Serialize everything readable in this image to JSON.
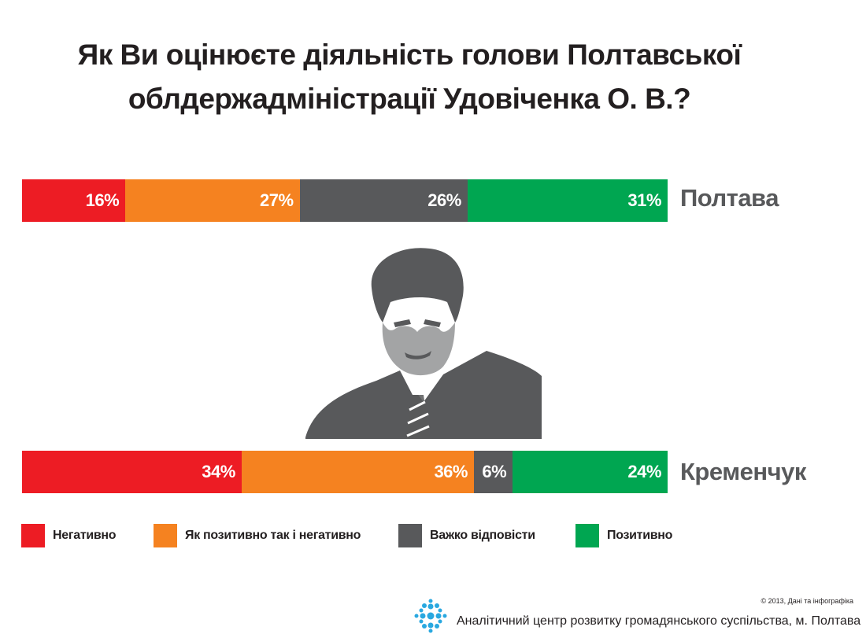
{
  "title": {
    "line1": "Як Ви оцінюєте діяльність голови Полтавської",
    "line2": "облдержадміністрації Удовіченка О. В.?"
  },
  "colors": {
    "negative": "#ed1c24",
    "mixed": "#f58220",
    "hard_to_say": "#58595b",
    "positive": "#00a651"
  },
  "chart_data": {
    "type": "bar",
    "stacked": true,
    "orientation": "horizontal",
    "title": "Як Ви оцінюєте діяльність голови Полтавської облдержадміністрації Удовіченка О. В.?",
    "categories": [
      "Полтава",
      "Кременчук"
    ],
    "series": [
      {
        "name": "Негативно",
        "color": "#ed1c24",
        "values": [
          16,
          34
        ],
        "labels": [
          "16%",
          "34%"
        ]
      },
      {
        "name": "Як позитивно так і негативно",
        "color": "#f58220",
        "values": [
          27,
          36
        ],
        "labels": [
          "27%",
          "36%"
        ]
      },
      {
        "name": "Важко відповісти",
        "color": "#58595b",
        "values": [
          26,
          6
        ],
        "labels": [
          "26%",
          "6%"
        ]
      },
      {
        "name": "Позитивно",
        "color": "#00a651",
        "values": [
          31,
          24
        ],
        "labels": [
          "31%",
          "24%"
        ]
      }
    ],
    "xlim": [
      0,
      100
    ],
    "legend_position": "bottom"
  },
  "legend": {
    "items": [
      {
        "label": "Негативно",
        "color": "#ed1c24"
      },
      {
        "label": "Як позитивно так і негативно",
        "color": "#f58220"
      },
      {
        "label": "Важко відповісти",
        "color": "#58595b"
      },
      {
        "label": "Позитивно",
        "color": "#00a651"
      }
    ]
  },
  "footer": {
    "copyright": "© 2013, Дані та інфографіка",
    "organization": "Аналітичний центр розвитку громадянського суспільства, м. Полтава",
    "logo_icon": "dots-logo-icon"
  },
  "portrait_icon": "portrait-silhouette-icon"
}
